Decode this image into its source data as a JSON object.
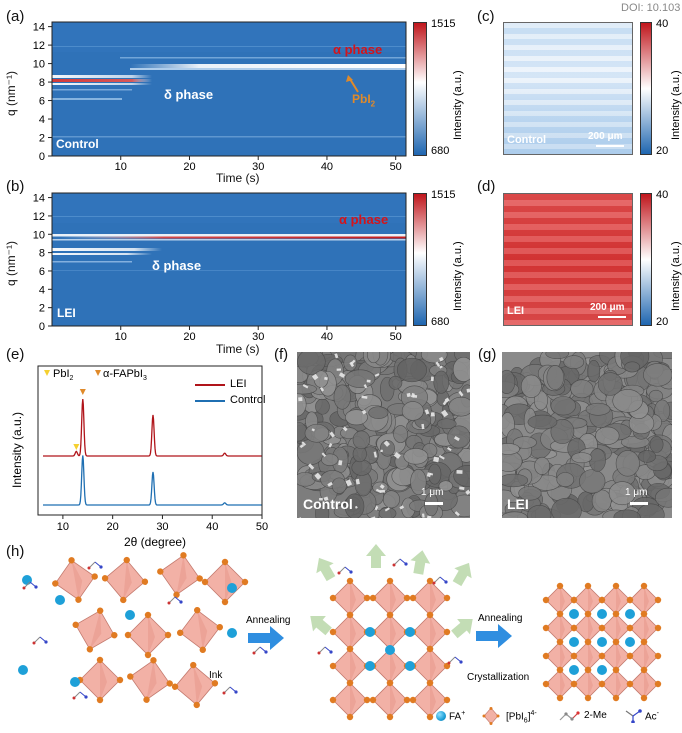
{
  "doi": "DOI: 10.103",
  "panels": {
    "a": {
      "label": "(a)",
      "xlabel": "Time (s)",
      "ylabel": "q (nm⁻¹)",
      "xticks": [
        "10",
        "20",
        "30",
        "40",
        "50"
      ],
      "yticks": [
        "0",
        "2",
        "4",
        "6",
        "8",
        "10",
        "12",
        "14"
      ],
      "corner": "Control",
      "anno_alpha": "α phase",
      "anno_delta": "δ phase",
      "anno_pbi": "PbI",
      "anno_pbi_sub": "2",
      "cbar_max": "1515",
      "cbar_min": "680",
      "cbar_label": "Intensity (a.u.)"
    },
    "b": {
      "label": "(b)",
      "xlabel": "Time (s)",
      "ylabel": "q (nm⁻¹)",
      "xticks": [
        "10",
        "20",
        "30",
        "40",
        "50"
      ],
      "yticks": [
        "0",
        "2",
        "4",
        "6",
        "8",
        "10",
        "12",
        "14"
      ],
      "corner": "LEI",
      "anno_alpha": "α phase",
      "anno_delta": "δ phase",
      "cbar_max": "1515",
      "cbar_min": "680",
      "cbar_label": "Intensity (a.u.)"
    },
    "c": {
      "label": "(c)",
      "corner": "Control",
      "scale": "200 μm",
      "cbar_max": "40",
      "cbar_min": "20",
      "cbar_label": "Intensity (a.u.)"
    },
    "d": {
      "label": "(d)",
      "corner": "LEI",
      "scale": "200 μm",
      "cbar_max": "40",
      "cbar_min": "20",
      "cbar_label": "Intensity (a.u.)"
    },
    "e": {
      "label": "(e)",
      "xlabel": "2θ (degree)",
      "ylabel": "Intensity (a.u.)",
      "xticks": [
        "10",
        "20",
        "30",
        "40",
        "50"
      ],
      "legend_pbi": "PbI",
      "legend_pbi_sub": "2",
      "legend_fapbi": "α-FAPbI",
      "legend_fapbi_sub": "3",
      "series_lei": "LEI",
      "series_control": "Control"
    },
    "f": {
      "label": "(f)",
      "corner": "Control",
      "scale": "1 μm"
    },
    "g": {
      "label": "(g)",
      "corner": "LEI",
      "scale": "1 μm"
    },
    "h": {
      "label": "(h)",
      "annealing1": "Annealing",
      "annealing2": "Annealing",
      "ink": "Ink",
      "crystallization": "Crystallization",
      "legend_fa": "FA",
      "legend_fa_sup": "+",
      "legend_pbi6_a": "[PbI",
      "legend_pbi6_sub": "6",
      "legend_pbi6_b": "]",
      "legend_pbi6_sup": "4-",
      "legend_2me": "2-Me",
      "legend_ac": "Ac",
      "legend_ac_sup": "-"
    }
  },
  "colors": {
    "heatmap_bg": "#2f72b8",
    "cbar_top": "#c0161c",
    "cbar_mid": "#ffffff",
    "cbar_bot": "#1f66b0",
    "lei_red": "#b0141a",
    "control_blue": "#1f6fb2",
    "label_red": "#d4141a",
    "label_orange": "#e08a2a",
    "octa": "#f2b1a6",
    "pb_atom": "#e07b22",
    "fa_atom": "#1ea0d8",
    "arrow_blue": "#2f8ee0",
    "green_arrow": "#b9d7a8"
  },
  "chart_data": [
    {
      "panel": "e",
      "type": "line",
      "xlabel": "2θ (degree)",
      "ylabel": "Intensity (a.u.)",
      "xlim": [
        5,
        50
      ],
      "series": [
        {
          "name": "LEI",
          "peaks": [
            [
              12.7,
              0.08
            ],
            [
              14.0,
              1.0
            ],
            [
              28.1,
              0.72
            ],
            [
              42.5,
              0.05
            ]
          ]
        },
        {
          "name": "Control",
          "peaks": [
            [
              14.0,
              0.9
            ],
            [
              28.1,
              0.6
            ],
            [
              42.5,
              0.04
            ]
          ]
        }
      ]
    }
  ]
}
